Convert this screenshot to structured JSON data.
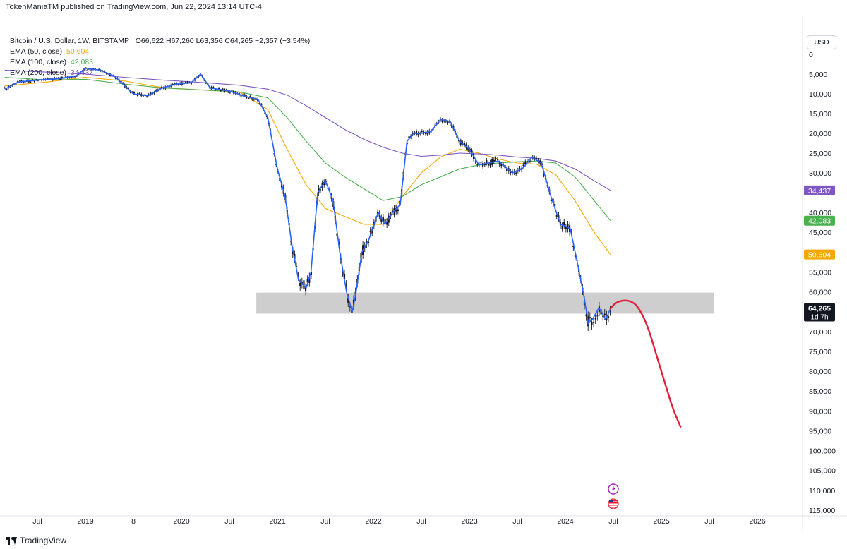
{
  "header": {
    "published_by": "TokenManiaTM published on TradingView.com, Jun 22, 2024 13:14 UTC-4"
  },
  "legend": {
    "symbol": "Bitcoin / U.S. Dollar, 1W, BITSTAMP",
    "ohlc": "O66,622  H67,260  L63,356  C64,265  −2,357 (−3.54%)",
    "ema50_label": "EMA (50, close)",
    "ema50_value": "50,604",
    "ema100_label": "EMA (100, close)",
    "ema100_value": "42,083",
    "ema200_label": "EMA (200, close)",
    "ema200_value": "34,437"
  },
  "toolbar": {
    "currency": "USD"
  },
  "footer": {
    "brand": "TradingView"
  },
  "colors": {
    "candle": "#131722",
    "highlight_line": "#2962ff",
    "ema50": "#f7a600",
    "ema100": "#4caf50",
    "ema200": "#7e57c2",
    "projection": "#e0203a",
    "zone": "#bdbdbd",
    "price_tag": "#131722"
  },
  "chart_data": {
    "type": "line",
    "y_axis_inverted": true,
    "y_ticks": [
      "0",
      "5,000",
      "10,000",
      "15,000",
      "20,000",
      "25,000",
      "30,000",
      "40,000",
      "45,000",
      "50,000",
      "55,000",
      "60,000",
      "65,000",
      "70,000",
      "75,000",
      "80,000",
      "85,000",
      "90,000",
      "95,000",
      "100,000",
      "105,000",
      "110,000",
      "115,000"
    ],
    "y_tick_values": [
      0,
      5000,
      10000,
      15000,
      20000,
      25000,
      30000,
      40000,
      45000,
      50000,
      55000,
      60000,
      65000,
      70000,
      75000,
      80000,
      85000,
      90000,
      95000,
      100000,
      105000,
      110000,
      115000
    ],
    "x_ticks": [
      "Jul",
      "2019",
      "8",
      "2020",
      "Jul",
      "2021",
      "Jul",
      "2022",
      "Jul",
      "2023",
      "Jul",
      "2024",
      "Jul",
      "2025",
      "Jul",
      "2026"
    ],
    "x_tick_values": [
      2018.5,
      2019.0,
      2019.5,
      2020.0,
      2020.5,
      2021.0,
      2021.5,
      2022.0,
      2022.5,
      2023.0,
      2023.5,
      2024.0,
      2024.5,
      2025.0,
      2025.5,
      2026.0
    ],
    "price_path": {
      "x": [
        2018.16,
        2018.3,
        2018.5,
        2018.7,
        2018.9,
        2019.0,
        2019.15,
        2019.3,
        2019.5,
        2019.65,
        2019.8,
        2019.95,
        2020.1,
        2020.2,
        2020.3,
        2020.5,
        2020.65,
        2020.8,
        2020.9,
        2021.0,
        2021.08,
        2021.15,
        2021.22,
        2021.3,
        2021.35,
        2021.42,
        2021.5,
        2021.58,
        2021.65,
        2021.72,
        2021.78,
        2021.82,
        2021.88,
        2021.95,
        2022.05,
        2022.12,
        2022.2,
        2022.28,
        2022.35,
        2022.42,
        2022.5,
        2022.6,
        2022.7,
        2022.8,
        2022.9,
        2023.0,
        2023.1,
        2023.2,
        2023.3,
        2023.45,
        2023.55,
        2023.65,
        2023.75,
        2023.85,
        2023.95,
        2024.05,
        2024.12,
        2024.2,
        2024.24,
        2024.28,
        2024.35,
        2024.42,
        2024.47
      ],
      "y": [
        8800,
        7000,
        6500,
        6200,
        5500,
        3500,
        4000,
        5500,
        10000,
        10500,
        8500,
        7500,
        7200,
        5000,
        8500,
        9300,
        10500,
        11500,
        16000,
        29000,
        36000,
        48000,
        57000,
        59000,
        55000,
        35000,
        32000,
        37000,
        50000,
        60000,
        65000,
        60000,
        50000,
        47000,
        40000,
        43000,
        40000,
        38000,
        22000,
        20000,
        20000,
        19500,
        16500,
        17000,
        22000,
        24000,
        28000,
        27500,
        27000,
        30000,
        29000,
        26000,
        27500,
        36000,
        43000,
        44000,
        52000,
        62000,
        68000,
        67000,
        64000,
        67000,
        64265
      ]
    },
    "series": [
      {
        "name": "EMA (50, close)",
        "value_label": "50,604",
        "x": [
          2018.16,
          2018.6,
          2019.0,
          2019.4,
          2019.8,
          2020.2,
          2020.6,
          2020.9,
          2021.1,
          2021.3,
          2021.5,
          2021.7,
          2021.9,
          2022.1,
          2022.3,
          2022.5,
          2022.7,
          2022.9,
          2023.1,
          2023.3,
          2023.5,
          2023.7,
          2023.9,
          2024.1,
          2024.3,
          2024.47
        ],
        "y": [
          8000,
          7000,
          5800,
          6700,
          8400,
          9000,
          9500,
          14000,
          24000,
          33000,
          39000,
          41000,
          43000,
          43000,
          36000,
          30000,
          26000,
          24000,
          25000,
          26500,
          27500,
          27800,
          30500,
          37000,
          45000,
          50604
        ]
      },
      {
        "name": "EMA (100, close)",
        "value_label": "42,083",
        "x": [
          2018.16,
          2018.6,
          2019.0,
          2019.4,
          2019.8,
          2020.2,
          2020.6,
          2020.9,
          2021.1,
          2021.3,
          2021.5,
          2021.7,
          2021.9,
          2022.1,
          2022.3,
          2022.5,
          2022.7,
          2022.9,
          2023.1,
          2023.3,
          2023.5,
          2023.7,
          2023.9,
          2024.1,
          2024.3,
          2024.47
        ],
        "y": [
          5800,
          6500,
          6300,
          7500,
          8500,
          9000,
          9500,
          11000,
          16000,
          22000,
          27500,
          31000,
          34000,
          37000,
          36000,
          33000,
          31000,
          29000,
          28000,
          27500,
          27200,
          27000,
          27500,
          31000,
          37000,
          42083
        ]
      },
      {
        "name": "EMA (200, close)",
        "value_label": "34,437",
        "x": [
          2018.16,
          2018.6,
          2019.0,
          2019.4,
          2019.8,
          2020.2,
          2020.6,
          2020.9,
          2021.1,
          2021.3,
          2021.5,
          2021.7,
          2021.9,
          2022.1,
          2022.3,
          2022.5,
          2022.7,
          2022.9,
          2023.1,
          2023.3,
          2023.5,
          2023.7,
          2023.9,
          2024.1,
          2024.3,
          2024.47
        ],
        "y": [
          4000,
          4500,
          5000,
          5800,
          6500,
          7100,
          7800,
          8800,
          10300,
          13000,
          16000,
          19000,
          21500,
          23500,
          25000,
          25800,
          25500,
          25000,
          25200,
          25500,
          26000,
          26300,
          27000,
          29000,
          32000,
          34437
        ]
      }
    ],
    "projection": {
      "x": [
        2024.47,
        2024.52,
        2024.6,
        2024.68,
        2024.75,
        2024.85,
        2024.95,
        2025.05,
        2025.12,
        2025.2
      ],
      "y": [
        64265,
        62800,
        62100,
        62300,
        63500,
        68000,
        76000,
        84000,
        89500,
        94000
      ]
    },
    "zone": {
      "x_start": 2020.78,
      "x_end": 2025.55,
      "y_top": 60200,
      "y_bottom": 65500
    },
    "last_price": {
      "value": "64,265",
      "countdown": "1d 7h"
    }
  }
}
